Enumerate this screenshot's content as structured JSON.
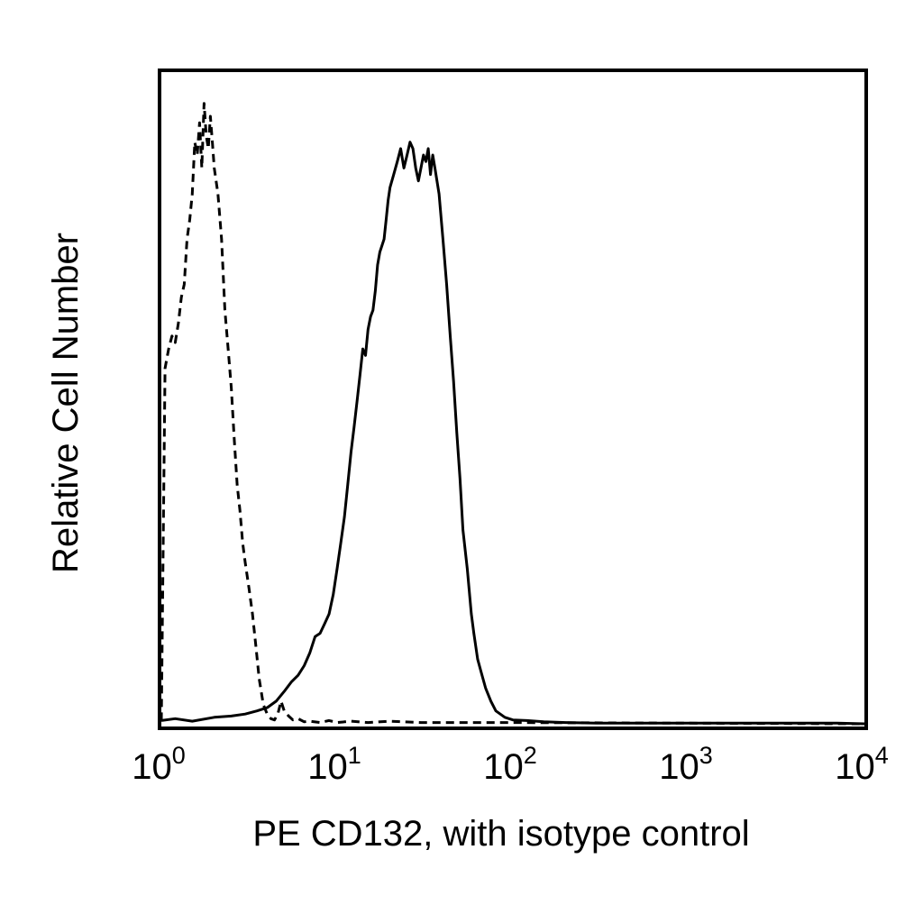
{
  "chart_data": {
    "type": "line",
    "title": "",
    "xlabel": "PE CD132, with isotype control",
    "ylabel": "Relative Cell Number",
    "x_scale": "log",
    "xlim": [
      1,
      10000
    ],
    "ylim": [
      0,
      100
    ],
    "grid": false,
    "legend": "none",
    "x_ticks": [
      {
        "value": 1,
        "base": "10",
        "exp": "0"
      },
      {
        "value": 10,
        "base": "10",
        "exp": "1"
      },
      {
        "value": 100,
        "base": "10",
        "exp": "2"
      },
      {
        "value": 1000,
        "base": "10",
        "exp": "3"
      },
      {
        "value": 10000,
        "base": "10",
        "exp": "4"
      }
    ],
    "series": [
      {
        "style": "dashed",
        "color": "#000000",
        "x": [
          1.0,
          1.05,
          1.1,
          1.15,
          1.2,
          1.25,
          1.3,
          1.35,
          1.4,
          1.45,
          1.5,
          1.55,
          1.6,
          1.65,
          1.7,
          1.75,
          1.8,
          1.85,
          1.9,
          1.95,
          2.0,
          2.1,
          2.2,
          2.3,
          2.4,
          2.5,
          2.6,
          2.7,
          2.8,
          2.9,
          3.0,
          3.15,
          3.3,
          3.45,
          3.6,
          3.8,
          4.0,
          4.2,
          4.4,
          4.6,
          4.8,
          5.0,
          5.3,
          5.6,
          6.0,
          6.5,
          7.0,
          8.0,
          9.0,
          10.0,
          12.0,
          15.0,
          20.0,
          30.0,
          50.0,
          100,
          1000,
          10000
        ],
        "y": [
          0.5,
          55,
          58,
          60,
          59,
          62,
          66,
          68,
          75,
          78,
          82,
          90,
          88,
          93,
          86,
          96,
          91,
          89,
          94,
          90,
          86,
          82,
          75,
          64,
          58,
          52,
          44,
          37,
          33,
          28,
          25,
          21,
          17,
          12,
          7,
          3,
          1.5,
          0.8,
          0.6,
          1.5,
          3.5,
          2.0,
          1.2,
          0.6,
          0.8,
          0.3,
          0.4,
          0.2,
          0.5,
          0.2,
          0.4,
          0.2,
          0.4,
          0.2,
          0.2,
          0.2,
          0.1,
          0
        ]
      },
      {
        "style": "solid",
        "color": "#000000",
        "x": [
          1.0,
          1.2,
          1.5,
          2.0,
          2.5,
          3.0,
          3.5,
          4.0,
          4.5,
          5.0,
          5.5,
          6.0,
          6.5,
          7.0,
          7.5,
          8.0,
          8.5,
          9.0,
          9.5,
          10.0,
          10.5,
          11.0,
          11.5,
          12.0,
          12.5,
          13.0,
          13.5,
          14.0,
          14.5,
          15.0,
          15.5,
          16.0,
          16.5,
          17.0,
          17.5,
          18.0,
          18.5,
          19.0,
          19.5,
          20.0,
          21.0,
          22.0,
          23.0,
          24.0,
          25.0,
          26.0,
          27.0,
          28.0,
          29.0,
          30.0,
          31.0,
          32.0,
          33.0,
          34.0,
          35.0,
          36.0,
          38.0,
          40.0,
          42.0,
          44.0,
          46.0,
          48.0,
          50.0,
          52.0,
          55.0,
          58.0,
          60.0,
          63.0,
          66.0,
          70.0,
          75.0,
          80.0,
          90.0,
          100,
          120,
          150,
          200,
          300,
          500,
          700,
          1000,
          3000,
          7000,
          10000
        ],
        "y": [
          0.5,
          0.8,
          0.4,
          1.0,
          1.2,
          1.5,
          2.0,
          2.5,
          3.5,
          5.0,
          6.5,
          7.5,
          9.0,
          11.0,
          13.5,
          14.0,
          15.5,
          17.0,
          20.0,
          24.0,
          28.0,
          32.0,
          37.0,
          42.0,
          46.0,
          50.0,
          54.0,
          58.0,
          57.0,
          61.0,
          63.0,
          64.0,
          67.0,
          71.0,
          73.0,
          74.0,
          75.0,
          78.0,
          81.0,
          83.0,
          85.0,
          87.0,
          89.0,
          86.0,
          88.0,
          90.0,
          89.0,
          86.0,
          84.0,
          86.0,
          88.0,
          87.0,
          89.0,
          85.0,
          88.0,
          86.0,
          82.0,
          75.0,
          68.0,
          60.0,
          53.0,
          45.0,
          38.0,
          30.0,
          24.0,
          17.0,
          14.0,
          10.0,
          8.0,
          5.5,
          3.5,
          2.0,
          1.0,
          0.6,
          0.5,
          0.3,
          0.2,
          0.1,
          0.1,
          0.1,
          0.1,
          0.1,
          0.1,
          0
        ]
      }
    ]
  }
}
